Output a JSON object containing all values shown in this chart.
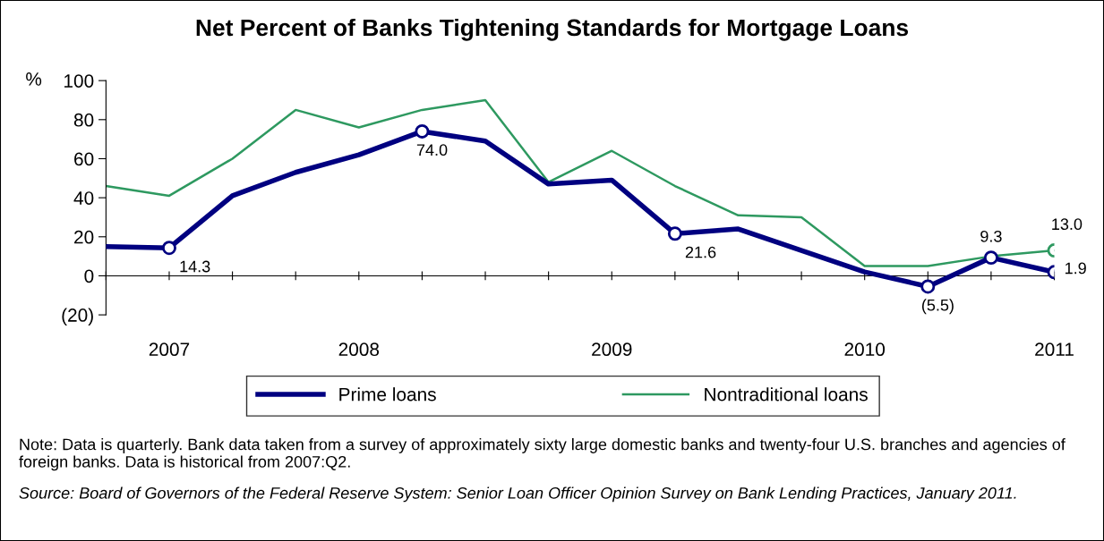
{
  "chart_data": {
    "type": "line",
    "title": "Net Percent of Banks Tightening Standards for Mortgage Loans",
    "ylabel": "%",
    "categories": [
      null,
      "2007",
      null,
      null,
      "2008",
      null,
      null,
      null,
      "2009",
      null,
      null,
      null,
      "2010",
      null,
      null,
      "2011"
    ],
    "series": [
      {
        "name": "Prime loans",
        "color": "#000080",
        "values": [
          15,
          14.3,
          41,
          53,
          62,
          74.0,
          69,
          47,
          49,
          21.6,
          24,
          13,
          2,
          -5.5,
          9.3,
          1.9
        ]
      },
      {
        "name": "Nontraditional loans",
        "color": "#2e9960",
        "values": [
          46,
          41,
          60,
          85,
          76,
          85,
          90,
          48,
          64,
          46,
          31,
          30,
          5,
          5,
          10,
          13.0
        ]
      },
      {
        "type": "scatter",
        "marker": "circle",
        "color": "#000080",
        "values": [
          null,
          14.3,
          null,
          null,
          null,
          74.0,
          null,
          null,
          null,
          21.6,
          null,
          null,
          null,
          -5.5,
          9.3,
          1.9
        ],
        "value_labels": [
          null,
          "14.3",
          null,
          null,
          null,
          "74.0",
          null,
          null,
          null,
          "21.6",
          null,
          null,
          null,
          "(5.5)",
          "9.3",
          "1.9"
        ]
      },
      {
        "type": "scatter",
        "marker": "circle",
        "color": "#2e9960",
        "values": [
          null,
          null,
          null,
          null,
          null,
          null,
          null,
          null,
          null,
          null,
          null,
          null,
          null,
          null,
          null,
          13.0
        ],
        "value_labels": [
          null,
          null,
          null,
          null,
          null,
          null,
          null,
          null,
          null,
          null,
          null,
          null,
          null,
          null,
          null,
          "13.0"
        ]
      }
    ],
    "ylim": [
      -20,
      100
    ],
    "yticks": [
      {
        "value": -20,
        "label": "(20)"
      },
      0,
      20,
      40,
      60,
      80,
      100
    ],
    "legend": "bottom",
    "annotations": [
      "Note: Data is quarterly. Bank data taken from a survey of approximately sixty large domestic banks and twenty-four U.S. branches and agencies of foreign banks. Data is historical from 2007:Q2.",
      "Source: Board of Governors of the Federal Reserve System: Senior Loan Officer Opinion Survey on Bank Lending Practices, January 2011."
    ]
  }
}
